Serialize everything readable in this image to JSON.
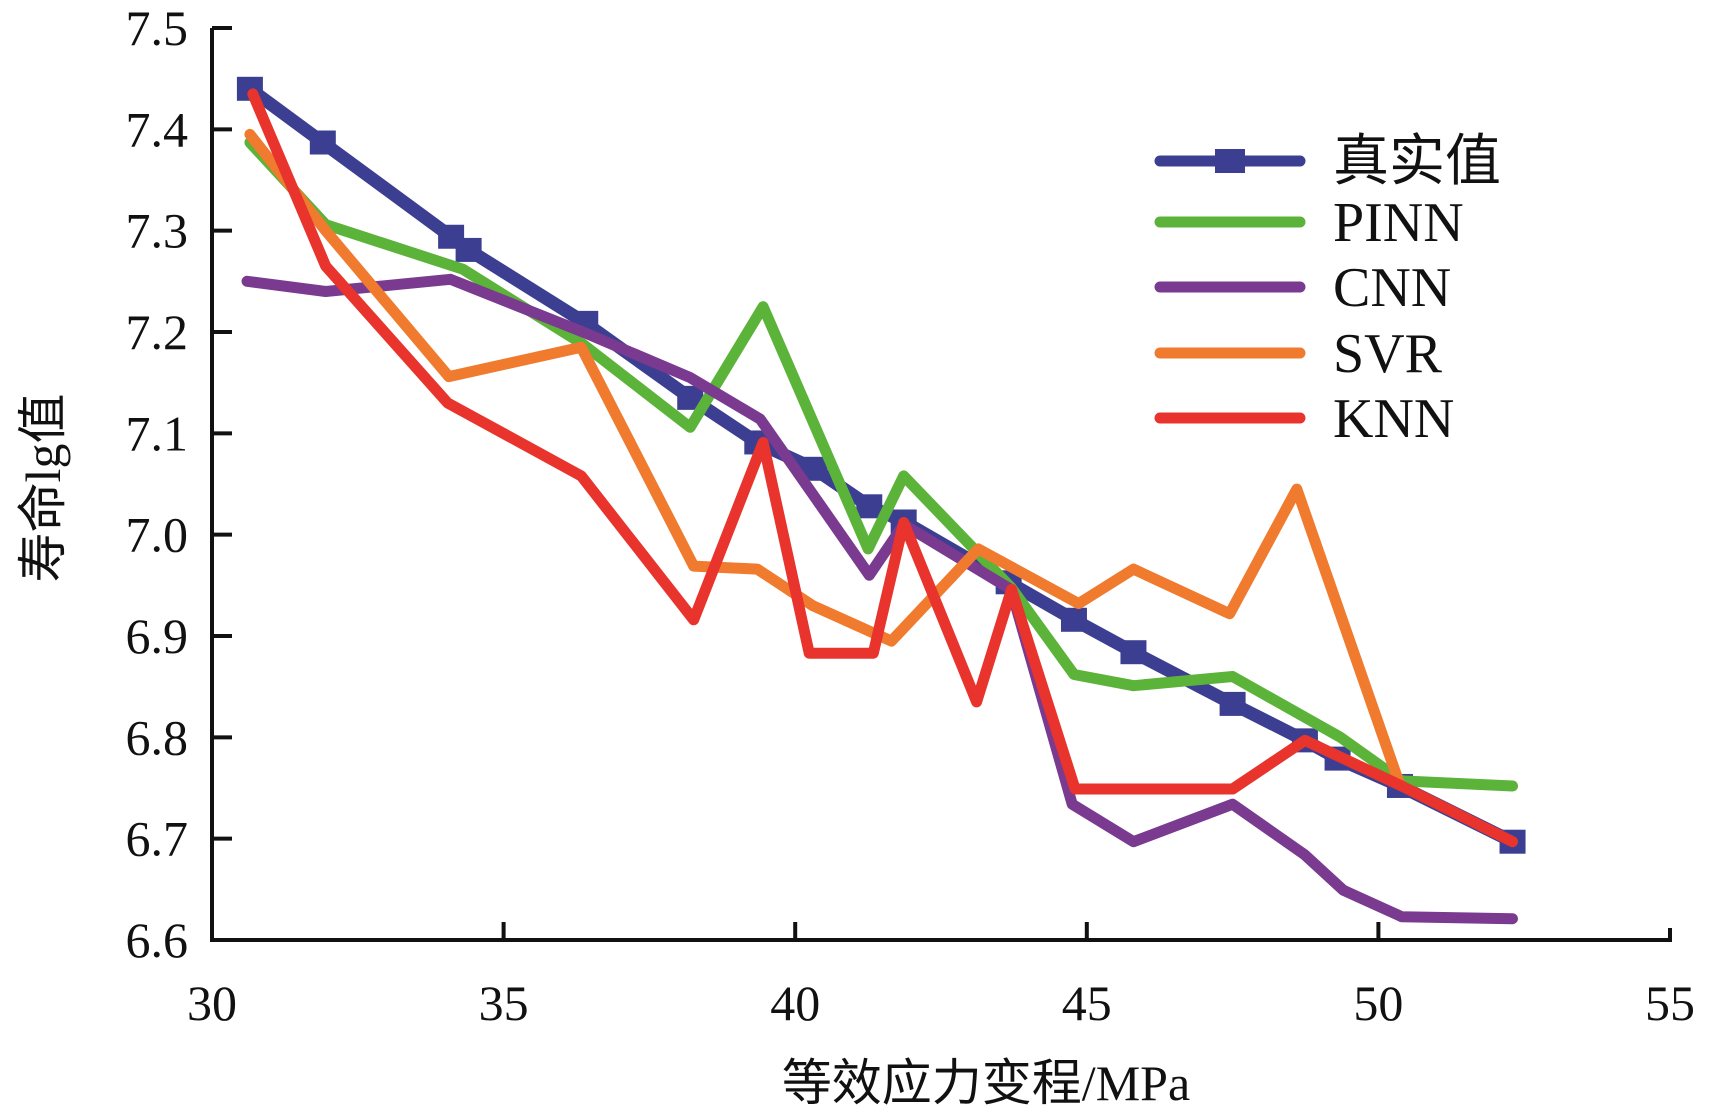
{
  "chart_data": {
    "type": "line",
    "title": "",
    "xlabel": "等效应力变程/MPa",
    "ylabel": "寿命lg值",
    "xlim": [
      30,
      55
    ],
    "ylim": [
      6.6,
      7.5
    ],
    "xticks": [
      "30",
      "35",
      "40",
      "45",
      "50",
      "55"
    ],
    "yticks": [
      "6.6",
      "6.7",
      "6.8",
      "6.9",
      "7.0",
      "7.1",
      "7.2",
      "7.3",
      "7.4",
      "7.5"
    ],
    "grid": false,
    "legend_position": "top-right",
    "series": [
      {
        "name": "真实值",
        "color": "#3c3f91",
        "marker": "square",
        "points": [
          [
            30.65,
            7.44
          ],
          [
            31.9,
            7.387
          ],
          [
            34.1,
            7.294
          ],
          [
            34.4,
            7.281
          ],
          [
            36.4,
            7.209
          ],
          [
            38.2,
            7.135
          ],
          [
            39.35,
            7.091
          ],
          [
            40.33,
            7.065
          ],
          [
            41.27,
            7.028
          ],
          [
            41.86,
            7.013
          ],
          [
            43.66,
            6.953
          ],
          [
            44.78,
            6.916
          ],
          [
            45.8,
            6.884
          ],
          [
            47.5,
            6.833
          ],
          [
            48.74,
            6.797
          ],
          [
            49.3,
            6.779
          ],
          [
            50.37,
            6.752
          ],
          [
            52.3,
            6.697
          ]
        ]
      },
      {
        "name": "PINN",
        "color": "#5cb33a",
        "marker": "none",
        "points": [
          [
            30.65,
            7.387
          ],
          [
            31.95,
            7.306
          ],
          [
            34.3,
            7.262
          ],
          [
            36.36,
            7.188
          ],
          [
            38.2,
            7.106
          ],
          [
            39.45,
            7.225
          ],
          [
            41.25,
            6.986
          ],
          [
            41.86,
            7.058
          ],
          [
            43.7,
            6.948
          ],
          [
            44.78,
            6.862
          ],
          [
            45.8,
            6.851
          ],
          [
            47.5,
            6.86
          ],
          [
            49.35,
            6.8
          ],
          [
            50.4,
            6.757
          ],
          [
            52.3,
            6.752
          ]
        ]
      },
      {
        "name": "CNN",
        "color": "#7a3a8f",
        "marker": "none",
        "points": [
          [
            30.6,
            7.25
          ],
          [
            31.95,
            7.24
          ],
          [
            34.09,
            7.252
          ],
          [
            36.36,
            7.2
          ],
          [
            38.2,
            7.155
          ],
          [
            39.4,
            7.114
          ],
          [
            40.3,
            7.04
          ],
          [
            41.27,
            6.96
          ],
          [
            41.86,
            7.01
          ],
          [
            43.7,
            6.946
          ],
          [
            44.75,
            6.734
          ],
          [
            45.8,
            6.697
          ],
          [
            47.5,
            6.734
          ],
          [
            48.74,
            6.684
          ],
          [
            49.4,
            6.649
          ],
          [
            50.4,
            6.623
          ],
          [
            52.3,
            6.621
          ]
        ]
      },
      {
        "name": "SVR",
        "color": "#f07a2e",
        "marker": "none",
        "points": [
          [
            30.65,
            7.395
          ],
          [
            31.95,
            7.3
          ],
          [
            34.06,
            7.156
          ],
          [
            36.33,
            7.185
          ],
          [
            38.26,
            6.969
          ],
          [
            39.35,
            6.966
          ],
          [
            40.3,
            6.93
          ],
          [
            41.65,
            6.895
          ],
          [
            43.14,
            6.986
          ],
          [
            44.86,
            6.932
          ],
          [
            45.8,
            6.966
          ],
          [
            47.45,
            6.922
          ],
          [
            48.6,
            7.045
          ],
          [
            50.35,
            6.756
          ]
        ]
      },
      {
        "name": "KNN",
        "color": "#e8342c",
        "marker": "none",
        "points": [
          [
            30.7,
            7.435
          ],
          [
            31.95,
            7.265
          ],
          [
            34.04,
            7.13
          ],
          [
            36.33,
            7.058
          ],
          [
            38.26,
            6.916
          ],
          [
            39.45,
            7.091
          ],
          [
            40.24,
            6.883
          ],
          [
            41.34,
            6.883
          ],
          [
            41.86,
            7.012
          ],
          [
            43.11,
            6.835
          ],
          [
            43.71,
            6.946
          ],
          [
            44.8,
            6.749
          ],
          [
            47.5,
            6.749
          ],
          [
            48.74,
            6.797
          ],
          [
            50.4,
            6.752
          ],
          [
            52.3,
            6.697
          ]
        ]
      }
    ]
  }
}
